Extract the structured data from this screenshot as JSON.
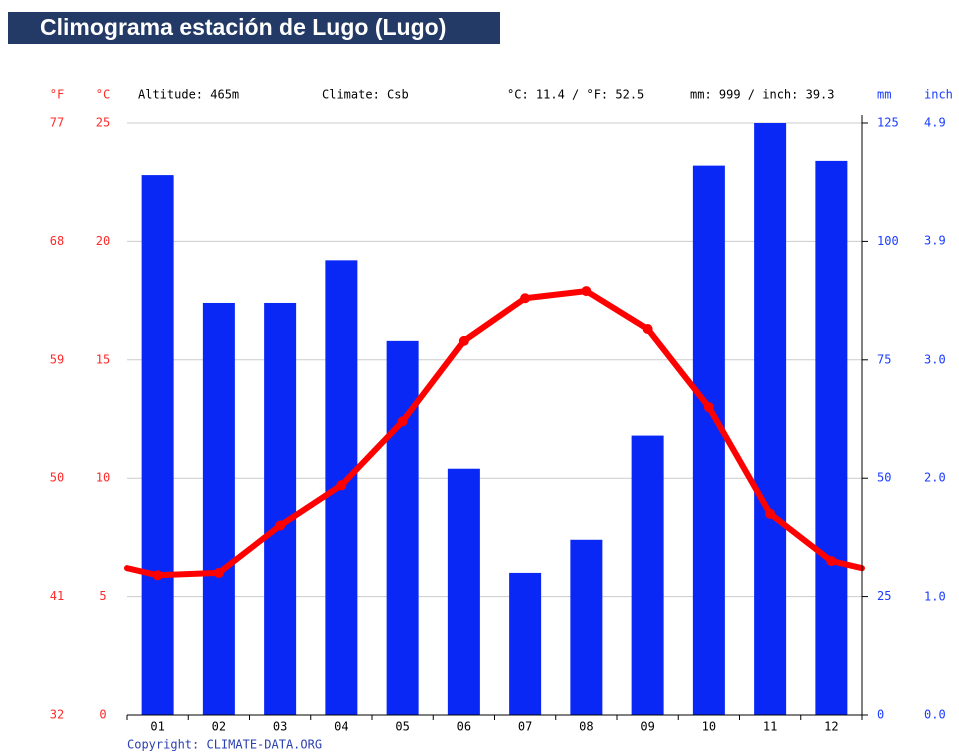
{
  "chart_data": {
    "type": "climograph",
    "title": "Climograma estación de Lugo (Lugo)",
    "units": {
      "f": "°F",
      "c": "°C",
      "mm": "mm",
      "inch": "inch"
    },
    "info": [
      "Altitude: 465m",
      "Climate: Csb",
      "°C: 11.4 / °F: 52.5",
      "mm: 999 / inch: 39.3"
    ],
    "copyright": "Copyright: CLIMATE-DATA.ORG",
    "categories": [
      "01",
      "02",
      "03",
      "04",
      "05",
      "06",
      "07",
      "08",
      "09",
      "10",
      "11",
      "12"
    ],
    "series": [
      {
        "type": "bar",
        "axis": "y2",
        "color": "#0a28f5",
        "values": [
          114,
          87,
          87,
          96,
          79,
          52,
          30,
          37,
          59,
          116,
          125,
          117
        ]
      },
      {
        "type": "line",
        "axis": "y",
        "color": "#ff0000",
        "values": [
          5.9,
          6.0,
          8.0,
          9.7,
          12.4,
          15.8,
          17.6,
          17.9,
          16.3,
          13.0,
          8.5,
          6.5
        ]
      }
    ],
    "ylim": [
      0,
      25
    ],
    "yticks": [
      0,
      5,
      10,
      15,
      20,
      25
    ],
    "flim": [
      32,
      77
    ],
    "fticks": [
      32,
      41,
      50,
      59,
      68,
      77
    ],
    "y2lim": [
      0,
      125
    ],
    "y2ticks": [
      0,
      25,
      50,
      75,
      100,
      125
    ],
    "y3lim": [
      0,
      4.92
    ],
    "y3ticks": [
      {
        "value": 0,
        "label": "0.0"
      },
      {
        "value": 0.98,
        "label": "1.0"
      },
      {
        "value": 1.97,
        "label": "2.0"
      },
      {
        "value": 2.95,
        "label": "3.0"
      },
      {
        "value": 3.94,
        "label": "3.9"
      },
      {
        "value": 4.92,
        "label": "4.9"
      }
    ],
    "grid": true
  }
}
